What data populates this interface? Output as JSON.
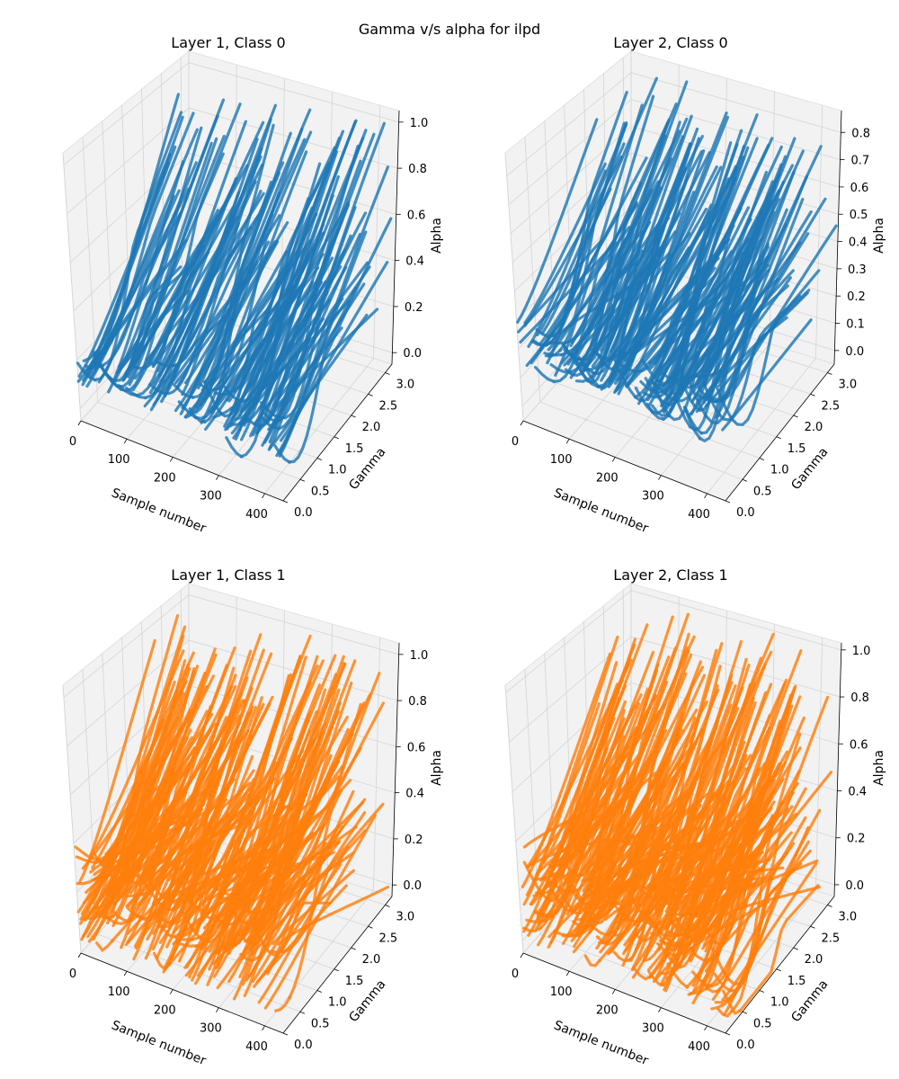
{
  "figure": {
    "title": "Gamma v/s alpha for ilpd"
  },
  "chart_data": [
    {
      "type": "scatter",
      "title": "Layer 1, Class 0",
      "xlabel": "Sample number",
      "ylabel": "Gamma",
      "zlabel": "Alpha",
      "x_ticks": [
        "0",
        "100",
        "200",
        "300",
        "400"
      ],
      "y_ticks": [
        "0.0",
        "0.5",
        "1.0",
        "1.5",
        "2.0",
        "2.5",
        "3.0"
      ],
      "z_ticks": [
        "0.0",
        "0.2",
        "0.4",
        "0.6",
        "0.8",
        "1.0"
      ],
      "xlim": [
        0,
        440
      ],
      "ylim": [
        0,
        3.2
      ],
      "zlim": [
        -0.05,
        1.05
      ],
      "color": "#1f77b4",
      "series": {
        "name": "Class 0",
        "seed": 11,
        "x_range": [
          0,
          440
        ],
        "alpha_start": [
          0.1,
          0.3
        ],
        "alpha_end": [
          0.15,
          1.0
        ],
        "curves": 140
      }
    },
    {
      "type": "scatter",
      "title": "Layer 2, Class 0",
      "xlabel": "Sample number",
      "ylabel": "Gamma",
      "zlabel": "Alpha",
      "x_ticks": [
        "0",
        "100",
        "200",
        "300",
        "400"
      ],
      "y_ticks": [
        "0.0",
        "0.5",
        "1.0",
        "1.5",
        "2.0",
        "2.5",
        "3.0"
      ],
      "z_ticks": [
        "0.0",
        "0.1",
        "0.2",
        "0.3",
        "0.4",
        "0.5",
        "0.6",
        "0.7",
        "0.8"
      ],
      "xlim": [
        0,
        440
      ],
      "ylim": [
        0,
        3.2
      ],
      "zlim": [
        -0.05,
        0.88
      ],
      "color": "#1f77b4",
      "series": {
        "name": "Class 0",
        "seed": 23,
        "x_range": [
          0,
          440
        ],
        "alpha_start": [
          0.15,
          0.3
        ],
        "alpha_end": [
          0.2,
          0.85
        ],
        "curves": 160
      }
    },
    {
      "type": "scatter",
      "title": "Layer 1, Class 1",
      "xlabel": "Sample number",
      "ylabel": "Gamma",
      "zlabel": "Alpha",
      "x_ticks": [
        "0",
        "100",
        "200",
        "300",
        "400"
      ],
      "y_ticks": [
        "0.0",
        "0.5",
        "1.0",
        "1.5",
        "2.0",
        "2.5",
        "3.0"
      ],
      "z_ticks": [
        "0.0",
        "0.2",
        "0.4",
        "0.6",
        "0.8",
        "1.0"
      ],
      "xlim": [
        0,
        440
      ],
      "ylim": [
        0,
        3.2
      ],
      "zlim": [
        -0.05,
        1.05
      ],
      "color": "#ff7f0e",
      "series": {
        "name": "Class 1",
        "seed": 37,
        "x_range": [
          0,
          440
        ],
        "alpha_start": [
          0.0,
          0.4
        ],
        "alpha_end": [
          0.0,
          1.0
        ],
        "curves": 220
      }
    },
    {
      "type": "scatter",
      "title": "Layer 2, Class 1",
      "xlabel": "Sample number",
      "ylabel": "Gamma",
      "zlabel": "Alpha",
      "x_ticks": [
        "0",
        "100",
        "200",
        "300",
        "400"
      ],
      "y_ticks": [
        "0.0",
        "0.5",
        "1.0",
        "1.5",
        "2.0",
        "2.5",
        "3.0"
      ],
      "z_ticks": [
        "0.0",
        "0.2",
        "0.4",
        "0.6",
        "0.8",
        "1.0"
      ],
      "xlim": [
        0,
        440
      ],
      "ylim": [
        0,
        3.2
      ],
      "zlim": [
        -0.05,
        1.03
      ],
      "color": "#ff7f0e",
      "series": {
        "name": "Class 1",
        "seed": 53,
        "x_range": [
          0,
          440
        ],
        "alpha_start": [
          0.0,
          0.4
        ],
        "alpha_end": [
          0.0,
          1.0
        ],
        "curves": 240
      }
    }
  ]
}
